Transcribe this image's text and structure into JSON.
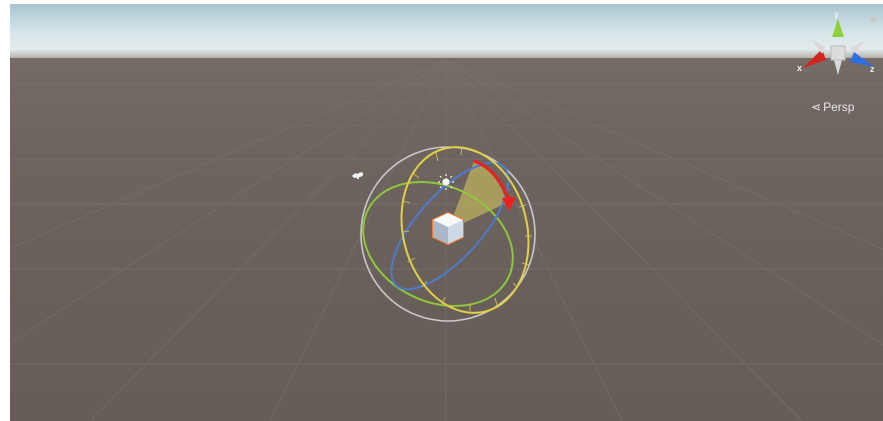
{
  "scene_view": {
    "camera_mode": "Persp",
    "gizmo_axes": {
      "x": "x",
      "y": "y",
      "z": "z"
    },
    "axis_colors": {
      "x": "#d0261f",
      "y": "#8fd13a",
      "z": "#2f6fe0",
      "neutral": "#d9d9d9"
    },
    "selected_object": {
      "type": "directional-light",
      "tool": "rotate",
      "rotate_ring_colors": {
        "x_ring": "#e2cf46",
        "y_ring": "#8ec63a",
        "z_ring": "#4f79cc",
        "screen_ring": "#c8c8c8",
        "drag_arc": "#ee1f1f",
        "drag_sector": "#dccf62"
      }
    },
    "colors": {
      "ground": "#6b615d",
      "sky": "#d9e6ea",
      "grid_line": "#7f7672"
    }
  }
}
